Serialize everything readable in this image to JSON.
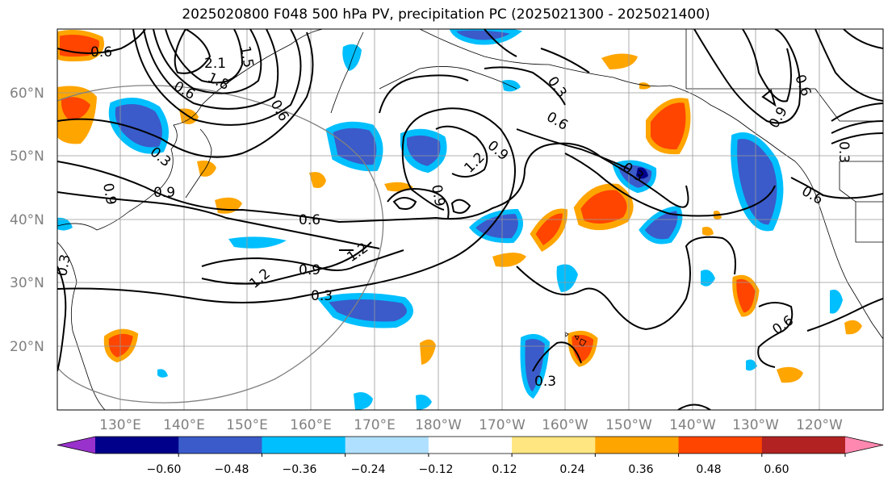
{
  "title": "2025020800 F048 500 hPa PV, precipitation PC (2025021300 - 2025021400)",
  "lat_labels": [
    "60°N",
    "50°N",
    "40°N",
    "30°N",
    "20°N"
  ],
  "lon_labels": [
    "130°E",
    "140°E",
    "150°E",
    "160°E",
    "170°E",
    "180°W",
    "170°W",
    "160°W",
    "150°W",
    "140°W",
    "130°W",
    "120°W"
  ],
  "colorbar": {
    "ticks": [
      "−0.60",
      "−0.48",
      "−0.36",
      "−0.24",
      "−0.12",
      "0.12",
      "0.24",
      "0.36",
      "0.48",
      "0.60"
    ],
    "colors": [
      "#9932CC",
      "#00008B",
      "#3A5BC9",
      "#00BFFF",
      "#B0E0FF",
      "#FFFFFF",
      "#FFE680",
      "#FFA500",
      "#FF4500",
      "#B22222",
      "#FF88B0"
    ]
  },
  "contour_labels": [
    "0.6",
    "2.1",
    "1.8",
    "1.5",
    "0.6",
    "0.3",
    "0.9",
    "0.9",
    "0.6",
    "0.9",
    "1.2",
    "0.3",
    "1.2",
    "0.9",
    "0.6",
    "0.9",
    "1.2",
    "0.3",
    "0.6",
    "0.3",
    "0.9",
    "0.6",
    "0.3",
    "0.6",
    "0.6",
    "0.3",
    "0.3"
  ]
}
